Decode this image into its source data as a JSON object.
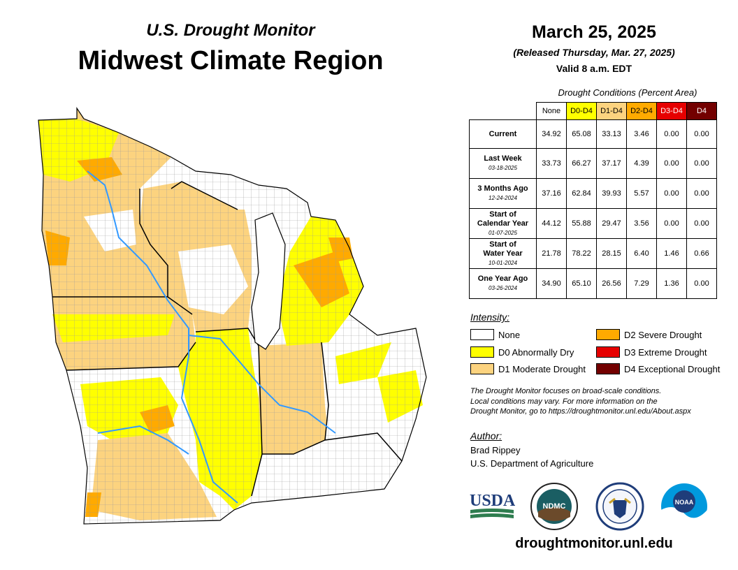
{
  "header": {
    "subtitle": "U.S. Drought Monitor",
    "title": "Midwest Climate Region",
    "date": "March 25, 2025",
    "released": "(Released Thursday, Mar. 27, 2025)",
    "valid": "Valid 8 a.m. EDT"
  },
  "table": {
    "caption": "Drought Conditions (Percent Area)",
    "columns": [
      {
        "label": "None",
        "color": "#ffffff",
        "text_color": "#000000"
      },
      {
        "label": "D0-D4",
        "color": "#ffff00",
        "text_color": "#000000"
      },
      {
        "label": "D1-D4",
        "color": "#fcd37f",
        "text_color": "#000000"
      },
      {
        "label": "D2-D4",
        "color": "#ffaa00",
        "text_color": "#000000"
      },
      {
        "label": "D3-D4",
        "color": "#e60000",
        "text_color": "#ffffff"
      },
      {
        "label": "D4",
        "color": "#730000",
        "text_color": "#ffffff"
      }
    ],
    "rows": [
      {
        "label": "Current",
        "label2": "",
        "date": "",
        "values": [
          "34.92",
          "65.08",
          "33.13",
          "3.46",
          "0.00",
          "0.00"
        ]
      },
      {
        "label": "Last Week",
        "label2": "",
        "date": "03-18-2025",
        "values": [
          "33.73",
          "66.27",
          "37.17",
          "4.39",
          "0.00",
          "0.00"
        ]
      },
      {
        "label": "3 Months Ago",
        "label2": "",
        "date": "12-24-2024",
        "values": [
          "37.16",
          "62.84",
          "39.93",
          "5.57",
          "0.00",
          "0.00"
        ]
      },
      {
        "label": "Start of",
        "label2": "Calendar Year",
        "date": "01-07-2025",
        "values": [
          "44.12",
          "55.88",
          "29.47",
          "3.56",
          "0.00",
          "0.00"
        ]
      },
      {
        "label": "Start of",
        "label2": "Water Year",
        "date": "10-01-2024",
        "values": [
          "21.78",
          "78.22",
          "28.15",
          "6.40",
          "1.46",
          "0.66"
        ]
      },
      {
        "label": "One Year Ago",
        "label2": "",
        "date": "03-26-2024",
        "values": [
          "34.90",
          "65.10",
          "26.56",
          "7.29",
          "1.36",
          "0.00"
        ]
      }
    ]
  },
  "legend": {
    "heading": "Intensity:",
    "items": [
      {
        "label": "None",
        "color": "#ffffff"
      },
      {
        "label": "D0 Abnormally Dry",
        "color": "#ffff00"
      },
      {
        "label": "D1 Moderate Drought",
        "color": "#fcd37f"
      },
      {
        "label": "D2 Severe Drought",
        "color": "#ffaa00"
      },
      {
        "label": "D3 Extreme Drought",
        "color": "#e60000"
      },
      {
        "label": "D4 Exceptional Drought",
        "color": "#730000"
      }
    ]
  },
  "note": {
    "line1": "The Drought Monitor focuses on broad-scale conditions.",
    "line2": "Local conditions may vary. For more information on the",
    "line3": "Drought Monitor, go to https://droughtmonitor.unl.edu/About.aspx"
  },
  "author": {
    "heading": "Author:",
    "name": "Brad Rippey",
    "org": "U.S. Department of Agriculture"
  },
  "logos": {
    "usda": "USDA",
    "ndmc": "NDMC",
    "noaa": "NOAA"
  },
  "footer": {
    "website": "droughtmonitor.unl.edu"
  }
}
